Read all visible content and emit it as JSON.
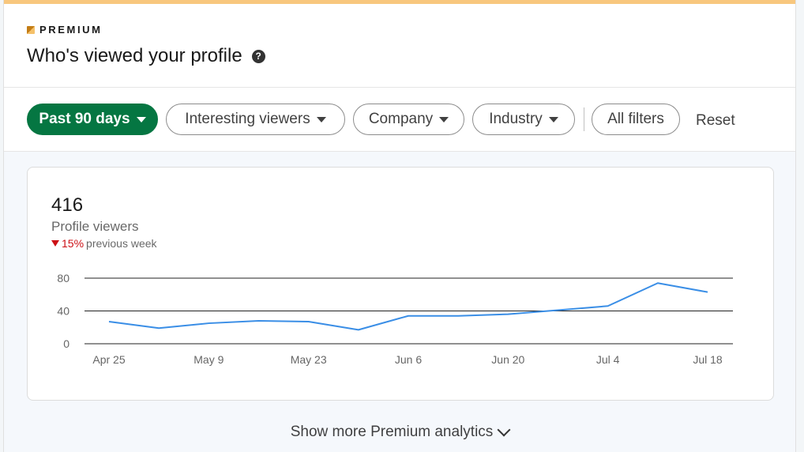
{
  "header": {
    "premium_label": "PREMIUM",
    "title": "Who's viewed your profile",
    "help_icon": "question-circle-icon"
  },
  "filters": {
    "time_range": "Past 90 days",
    "interesting_viewers": "Interesting viewers",
    "company": "Company",
    "industry": "Industry",
    "all_filters": "All filters",
    "reset": "Reset"
  },
  "stats": {
    "value": "416",
    "label": "Profile viewers",
    "change_pct": "15%",
    "change_label": "previous week",
    "change_direction": "down"
  },
  "footer": {
    "show_more": "Show more Premium analytics"
  },
  "colors": {
    "accent_green": "#057642",
    "line_blue": "#3a8ee6",
    "negative_red": "#cc1016",
    "premium_gold": "#f8c77e"
  },
  "chart_data": {
    "type": "line",
    "title": "",
    "xlabel": "",
    "ylabel": "",
    "ylim": [
      0,
      80
    ],
    "yticks": [
      "80",
      "40",
      "0"
    ],
    "ytick_values": [
      80,
      40,
      0
    ],
    "xtick_labels": [
      "Apr 25",
      "May 9",
      "May 23",
      "Jun 6",
      "Jun 20",
      "Jul 4",
      "Jul 18"
    ],
    "grid": true,
    "series": [
      {
        "values": [
          27,
          19,
          25,
          28,
          27,
          17,
          34,
          34,
          36,
          41,
          46,
          74,
          63
        ]
      }
    ]
  }
}
